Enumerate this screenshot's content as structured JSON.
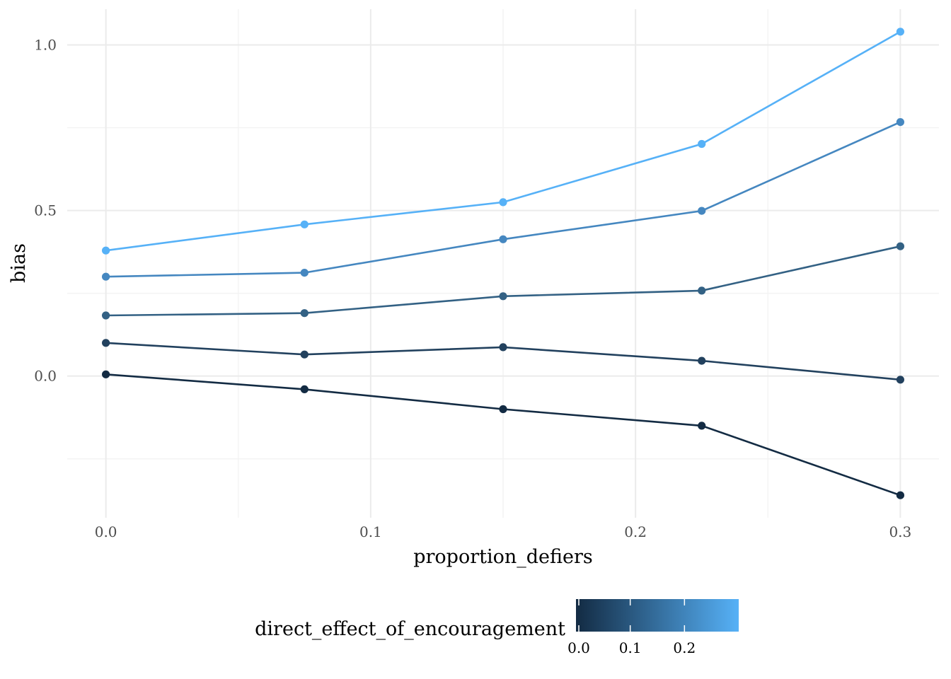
{
  "chart_data": {
    "type": "line",
    "xlabel": "proportion_defiers",
    "ylabel": "bias",
    "xlim": [
      -0.0146,
      0.3146
    ],
    "ylim": [
      -0.428,
      1.108
    ],
    "x_ticks": [
      0.0,
      0.1,
      0.2,
      0.3
    ],
    "x_tick_labels": [
      "0.0",
      "0.1",
      "0.2",
      "0.3"
    ],
    "y_ticks": [
      0.0,
      0.5,
      1.0
    ],
    "y_tick_labels": [
      "0.0",
      "0.5",
      "1.0"
    ],
    "x_minor_ticks": [
      0.05,
      0.15,
      0.25
    ],
    "y_minor_ticks": [
      -0.25,
      0.25,
      0.75
    ],
    "grid": true,
    "x": [
      0.0,
      0.075,
      0.15,
      0.225,
      0.3
    ],
    "series": [
      {
        "color_value": 0.0,
        "color": "#132B43",
        "values": [
          0.005,
          -0.04,
          -0.1,
          -0.15,
          -0.36
        ]
      },
      {
        "color_value": 0.075,
        "color": "#22415E",
        "values": [
          0.1,
          0.065,
          0.087,
          0.046,
          -0.011
        ]
      },
      {
        "color_value": 0.15,
        "color": "#336184",
        "values": [
          0.183,
          0.19,
          0.241,
          0.258,
          0.392
        ]
      },
      {
        "color_value": 0.225,
        "color": "#4587C0",
        "values": [
          0.3,
          0.312,
          0.413,
          0.499,
          0.767
        ]
      },
      {
        "color_value": 0.3,
        "color": "#56B1F7",
        "values": [
          0.379,
          0.458,
          0.525,
          0.701,
          1.04
        ]
      }
    ],
    "legend": {
      "title": "direct_effect_of_encouragement",
      "placement": "bottom",
      "low_color": "#132B43",
      "high_color": "#56B1F7",
      "range": [
        0.0,
        0.3
      ],
      "ticks": [
        0.0,
        0.1,
        0.2
      ],
      "tick_labels": [
        "0.0",
        "0.1",
        "0.2"
      ]
    }
  }
}
